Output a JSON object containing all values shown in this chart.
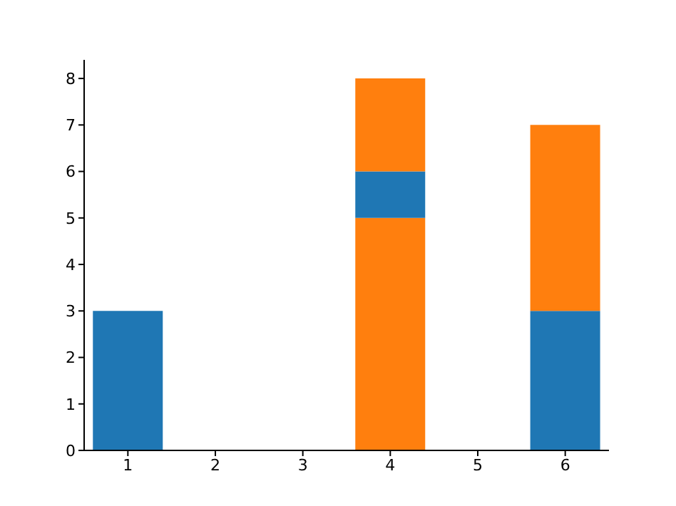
{
  "chart_data": {
    "type": "bar",
    "stacked": true,
    "categories": [
      "1",
      "2",
      "3",
      "4",
      "5",
      "6"
    ],
    "series": [
      {
        "color": "#ff7f0e",
        "values": [
          null,
          null,
          null,
          5,
          null,
          null
        ]
      },
      {
        "color": "#1f77b4",
        "values": [
          3,
          null,
          null,
          1,
          null,
          3
        ]
      },
      {
        "color": "#ff7f0e",
        "values": [
          null,
          null,
          null,
          2,
          null,
          4
        ]
      }
    ],
    "ylim": [
      0,
      8.4
    ],
    "yticks": [
      0,
      1,
      2,
      3,
      4,
      5,
      6,
      7,
      8
    ],
    "grid": false,
    "legend": false
  }
}
